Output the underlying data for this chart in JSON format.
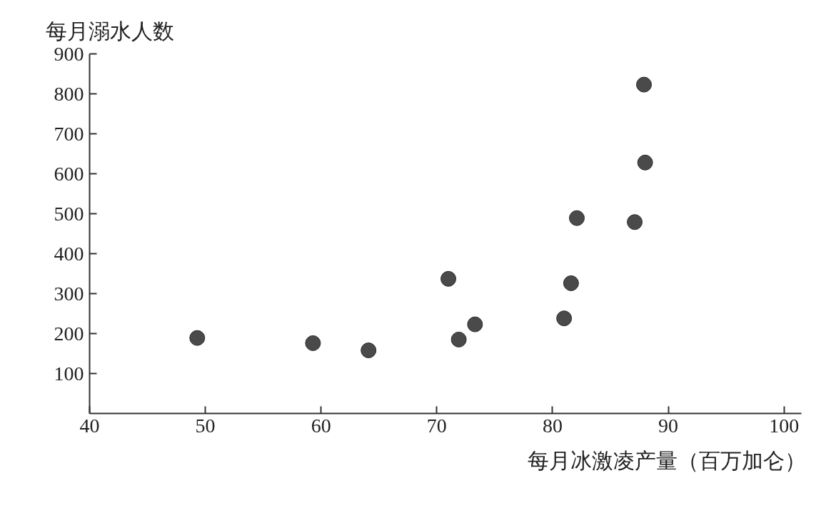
{
  "chart_data": {
    "type": "scatter",
    "xlabel": "每月冰激凌产量（百万加仑）",
    "ylabel": "每月溺水人数",
    "x": [
      49.3,
      59.3,
      64.1,
      71.0,
      71.9,
      73.3,
      81.0,
      81.6,
      82.1,
      87.1,
      87.9,
      88.0
    ],
    "series": [
      {
        "color": "#4a4a4a",
        "values": [
          189,
          176,
          158,
          337,
          185,
          223,
          238,
          326,
          489,
          479,
          823,
          628
        ]
      }
    ],
    "marker": "circle",
    "grid": false,
    "xlim": [
      40,
      101.5
    ],
    "ylim": [
      0,
      900
    ],
    "xticks": [
      40,
      50,
      60,
      70,
      80,
      90,
      100
    ],
    "yticks": [
      100,
      200,
      300,
      400,
      500,
      600,
      700,
      800,
      900
    ]
  }
}
